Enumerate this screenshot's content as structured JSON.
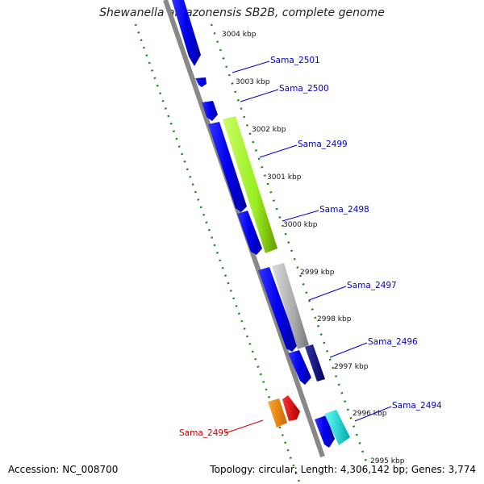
{
  "title": "Shewanella amazonensis SB2B, complete genome",
  "accession": "Accession: NC_008700",
  "summary": "Topology: circular; Length: 4,306,142 bp; Genes: 3,774",
  "scale_ticks": [
    {
      "label": "3004 kbp"
    },
    {
      "label": "3003 kbp"
    },
    {
      "label": "3002 kbp"
    },
    {
      "label": "3001 kbp"
    },
    {
      "label": "3000 kbp"
    },
    {
      "label": "2999 kbp"
    },
    {
      "label": "2998 kbp"
    },
    {
      "label": "2997 kbp"
    },
    {
      "label": "2996 kbp"
    },
    {
      "label": "2995 kbp"
    }
  ],
  "gene_labels": [
    {
      "name": "Sama_2501",
      "color": "#0000cc"
    },
    {
      "name": "Sama_2500",
      "color": "#0000cc"
    },
    {
      "name": "Sama_2499",
      "color": "#0000cc"
    },
    {
      "name": "Sama_2498",
      "color": "#0000cc"
    },
    {
      "name": "Sama_2497",
      "color": "#0000cc"
    },
    {
      "name": "Sama_2496",
      "color": "#0000cc"
    },
    {
      "name": "Sama_2494",
      "color": "#0000cc"
    },
    {
      "name": "Sama_2495",
      "color": "#cc0000"
    }
  ],
  "colors": {
    "backbone": "#888888",
    "cds_forward": "#0000ee",
    "rrna": "#99ee22",
    "trna": "#aaaaaa",
    "misc": "#ff8800",
    "red": "#ee0000",
    "cyan": "#00dddd",
    "navy": "#000088",
    "gc_dots": "#118811"
  }
}
